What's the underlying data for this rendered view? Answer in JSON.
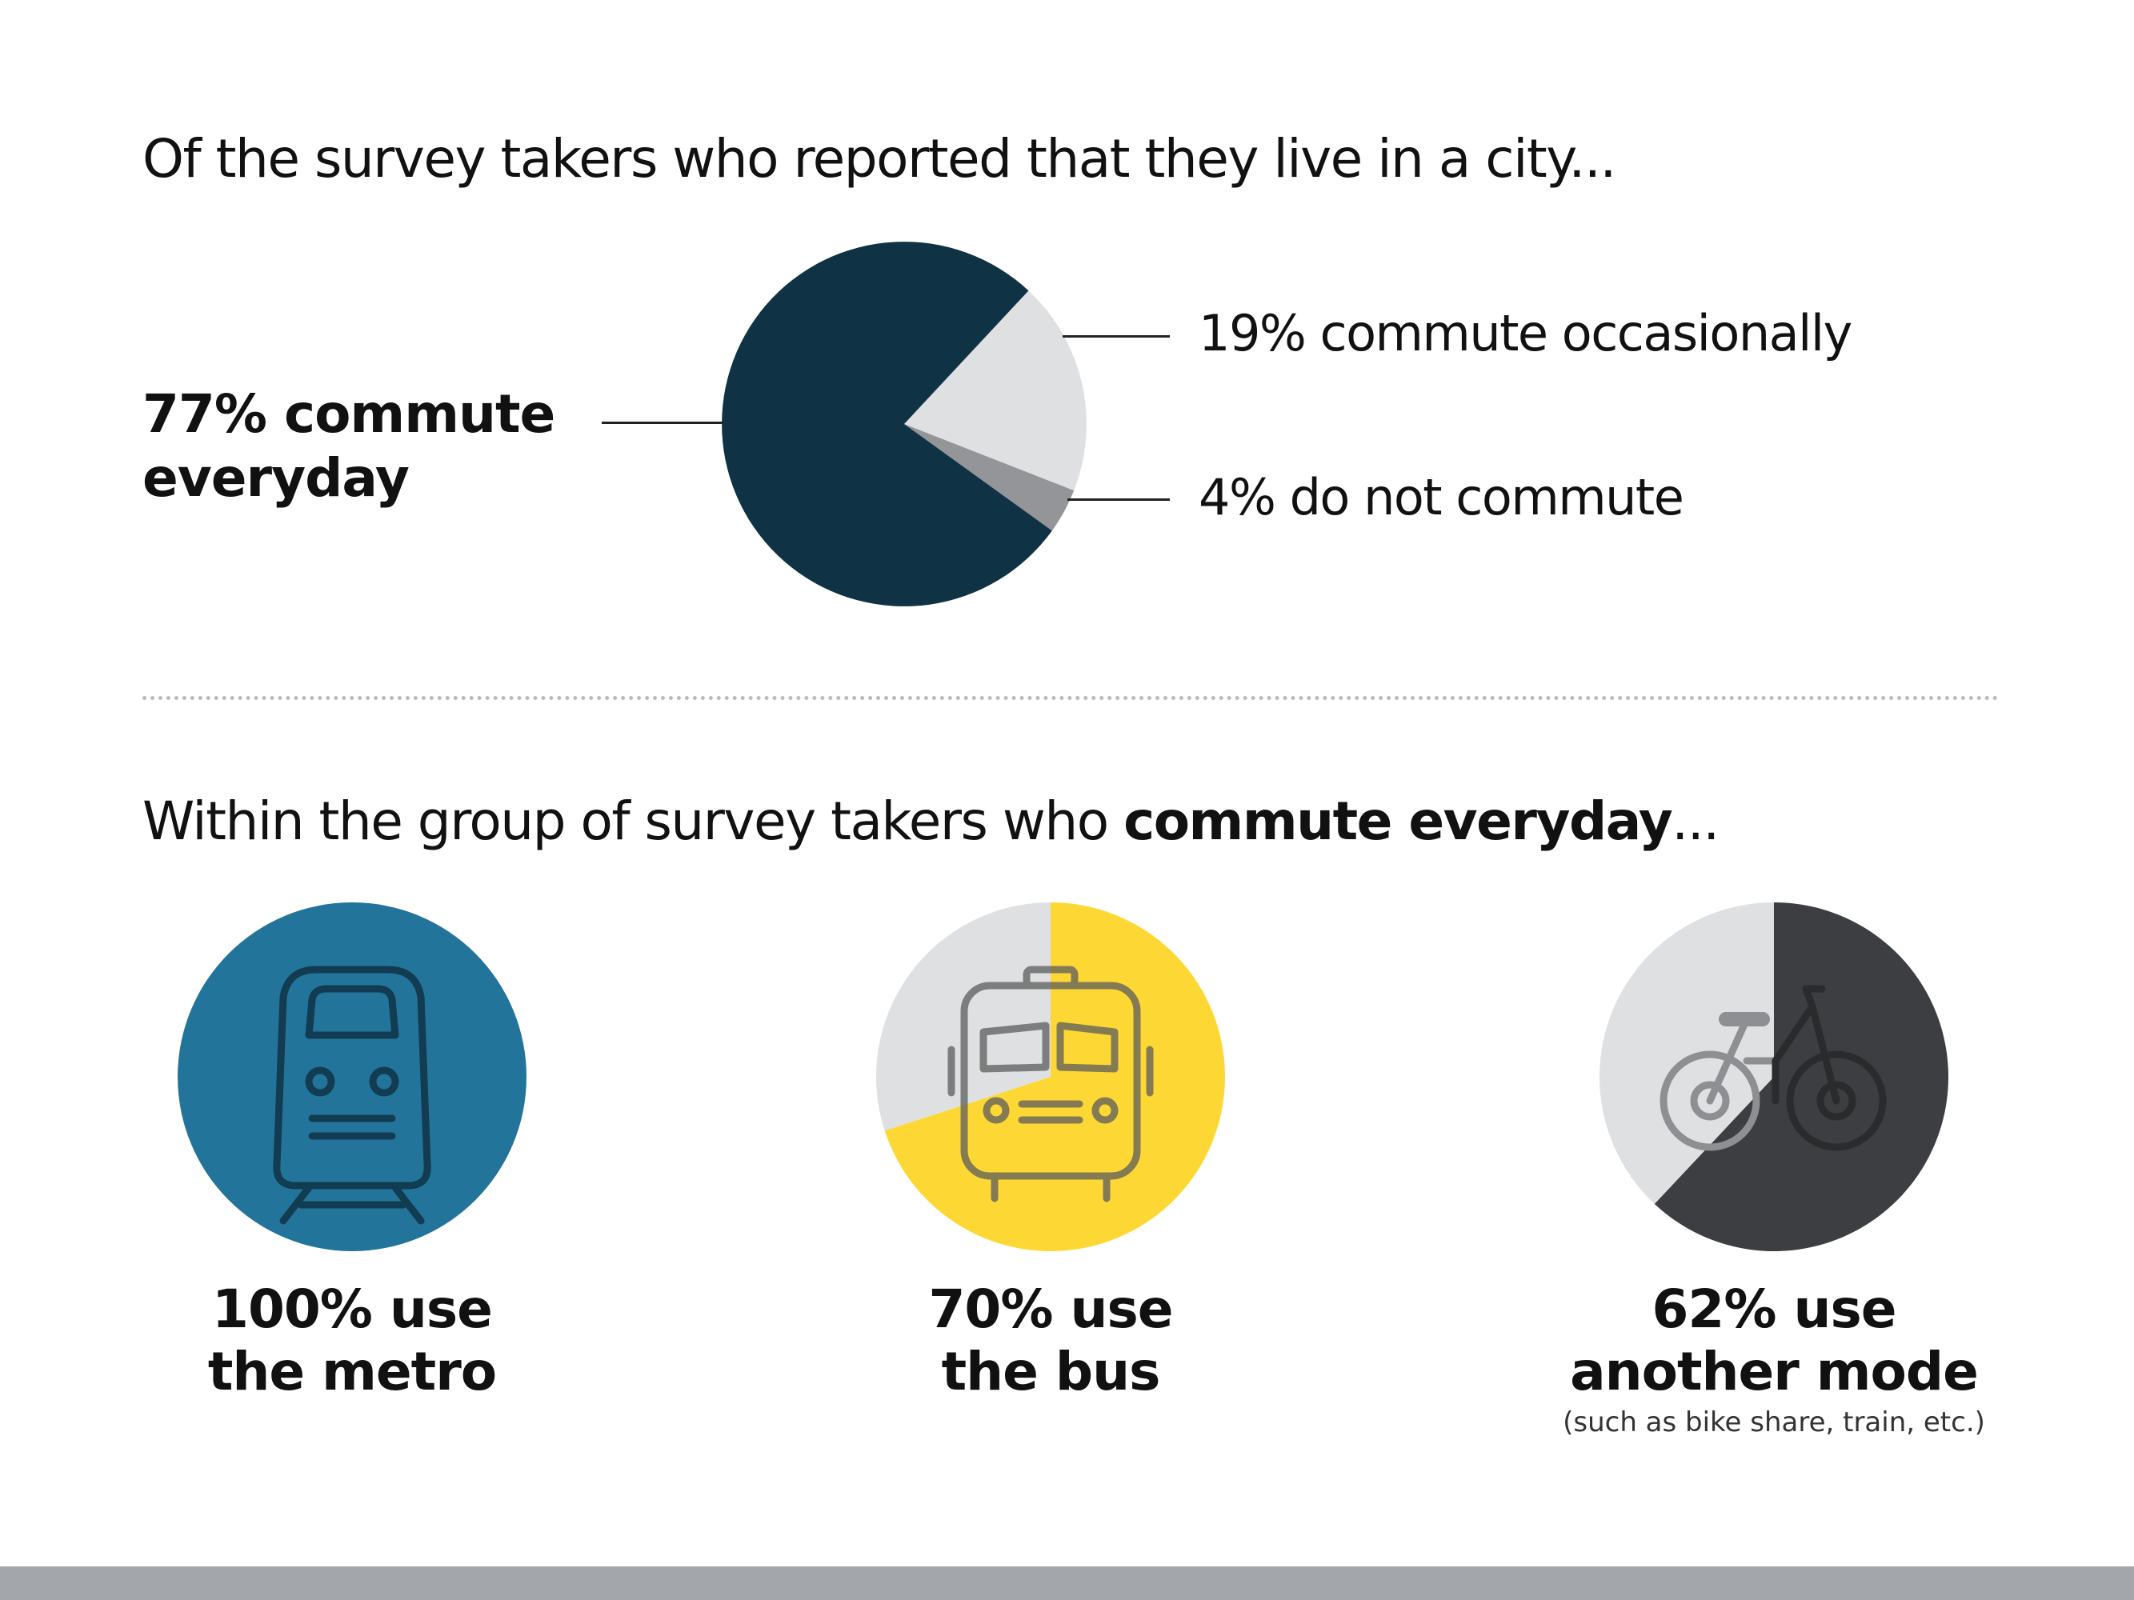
{
  "top_heading": "Of the survey takers who reported that they live in a city...",
  "chart_data": [
    {
      "type": "pie",
      "title": "",
      "categories": [
        "commute everyday",
        "commute occasionally",
        "do not commute"
      ],
      "values": [
        77,
        19,
        4
      ],
      "colors": [
        "#0f3345",
        "#dfe0e2",
        "#939598"
      ]
    },
    {
      "type": "pie",
      "categories": [
        "use the metro"
      ],
      "values": [
        100
      ],
      "colors": [
        "#23749a"
      ]
    },
    {
      "type": "pie",
      "categories": [
        "use the bus",
        "other"
      ],
      "values": [
        70,
        30
      ],
      "colors": [
        "#fdd835",
        "#dfe0e2"
      ]
    },
    {
      "type": "pie",
      "categories": [
        "use another mode",
        "other"
      ],
      "values": [
        62,
        38
      ],
      "colors": [
        "#3d3e41",
        "#dfe0e2"
      ]
    }
  ],
  "labels": {
    "everyday_line1": "77% commute",
    "everyday_line2": "everyday",
    "occasionally": "19% commute occasionally",
    "not_commute": "4% do not commute"
  },
  "bottom_heading": {
    "prefix": "Within the group of survey takers who ",
    "bold": "commute everyday",
    "suffix": "..."
  },
  "stats": {
    "metro": {
      "line1": "100% use",
      "line2": "the metro",
      "icon": "train-icon"
    },
    "bus": {
      "line1": "70% use",
      "line2": "the bus",
      "icon": "bus-icon"
    },
    "other": {
      "line1": "62% use",
      "line2": "another mode",
      "note": "(such as bike share, train, etc.)",
      "icon": "bicycle-icon"
    }
  }
}
